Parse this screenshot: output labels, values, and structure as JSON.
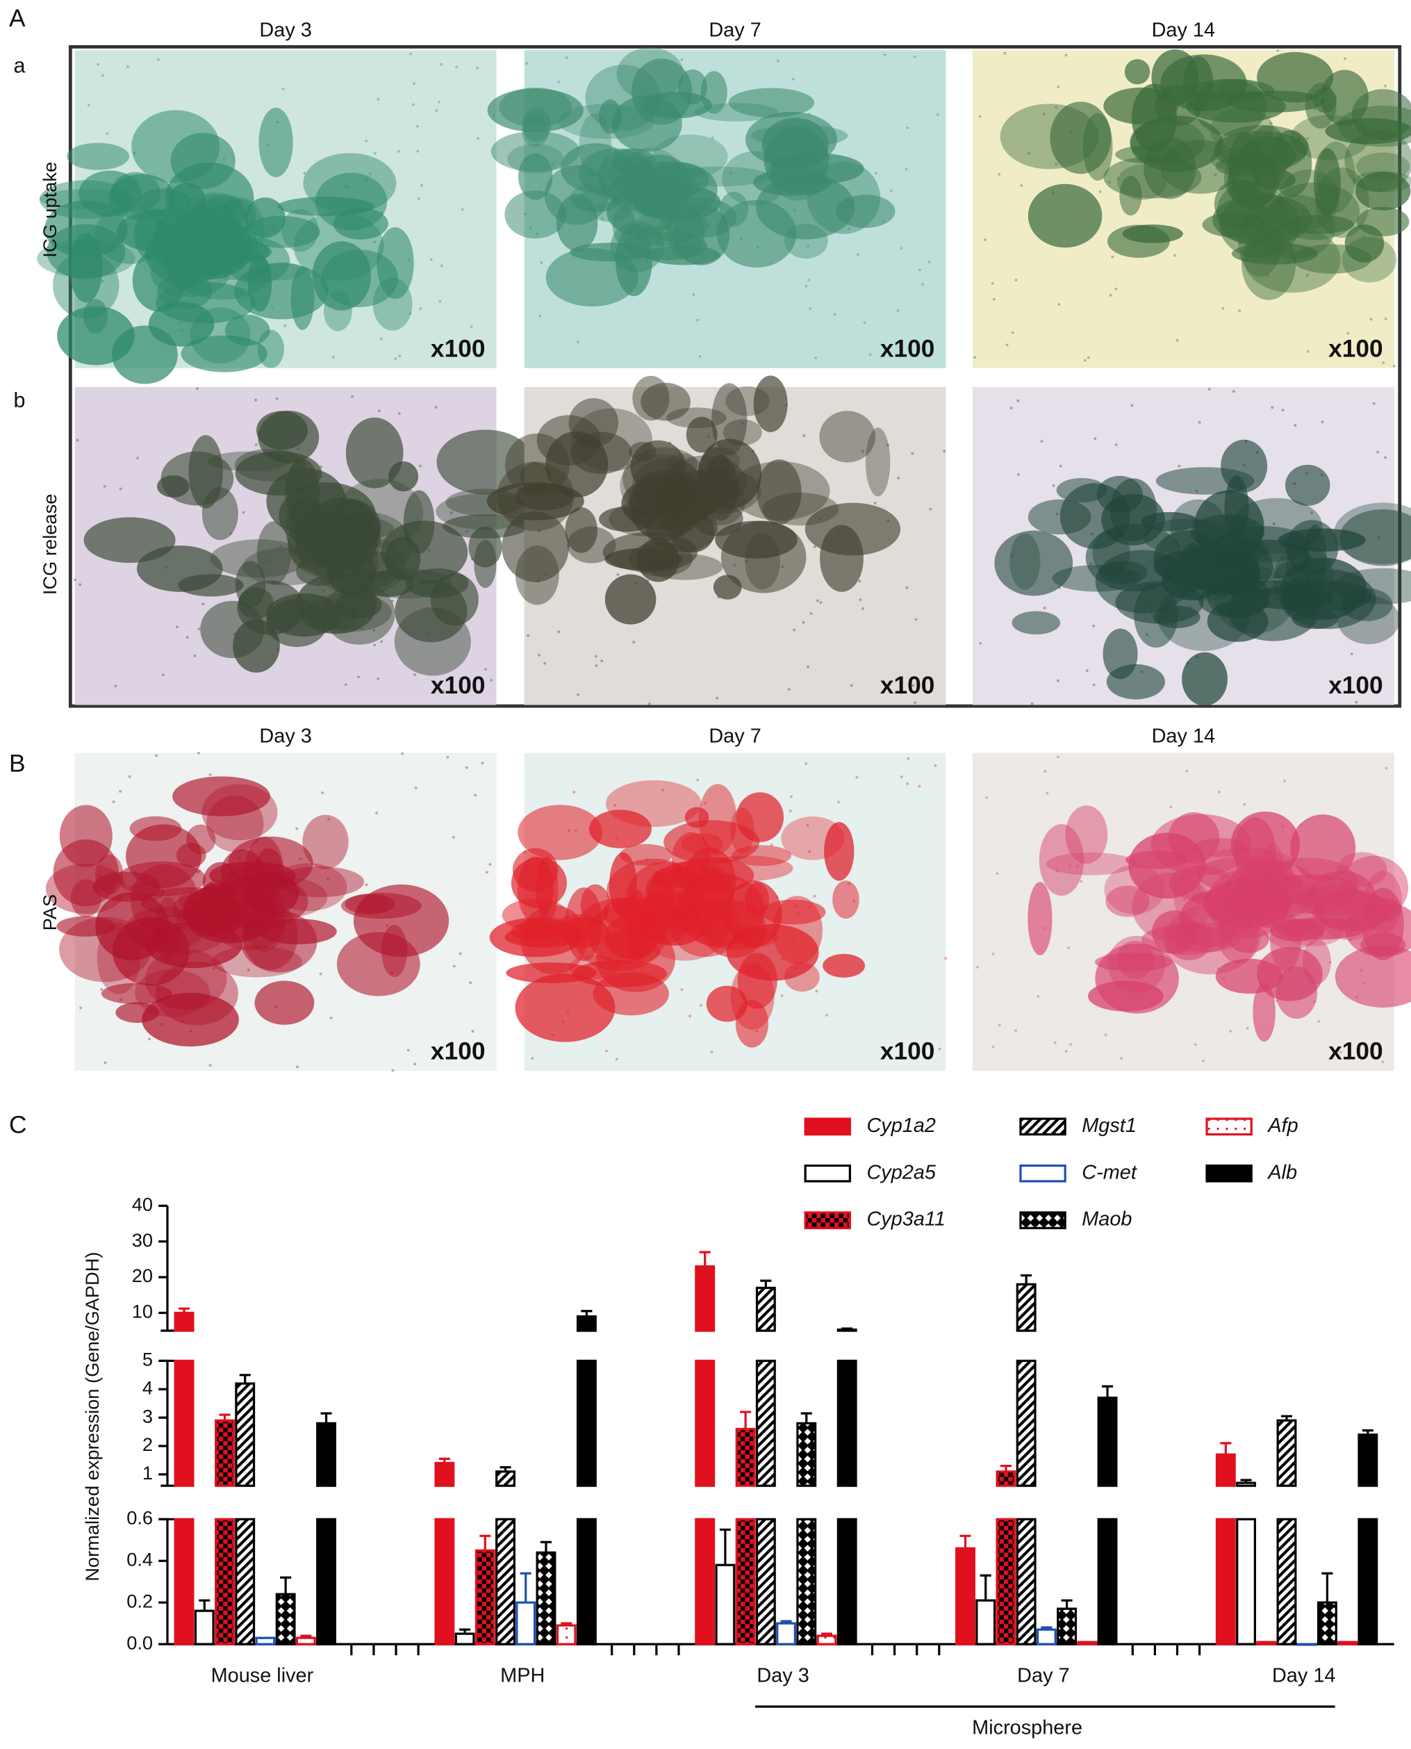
{
  "panel_a": {
    "label": "A",
    "columns": [
      "Day 3",
      "Day 7",
      "Day 14"
    ],
    "rows": [
      {
        "label": "a",
        "name": "ICG uptake",
        "magnifications": [
          "x100",
          "x100",
          "x100"
        ]
      },
      {
        "label": "b",
        "name": "ICG release",
        "magnifications": [
          "x100",
          "x100",
          "x100"
        ]
      }
    ]
  },
  "panel_b": {
    "label": "B",
    "columns": [
      "Day 3",
      "Day 7",
      "Day 14"
    ],
    "row_name": "PAS",
    "magnifications": [
      "x100",
      "x100",
      "x100"
    ]
  },
  "panel_c": {
    "label": "C"
  },
  "chart_data": {
    "type": "bar",
    "y_label": "Normalized expression (Gene/GAPDH)",
    "categories": [
      "Mouse liver",
      "MPH",
      "Day 3",
      "Day 7",
      "Day 14"
    ],
    "annotation": "Microsphere",
    "axis_segments": [
      {
        "ylim": [
          0,
          0.6
        ],
        "yticks": [
          {
            "value": 0,
            "label": "0.0"
          },
          0.2,
          0.4,
          0.6
        ]
      },
      {
        "ylim": [
          0.6,
          5
        ],
        "yticks": [
          1,
          2,
          3,
          4,
          5
        ]
      },
      {
        "ylim": [
          5,
          40
        ],
        "yticks": [
          10,
          20,
          30,
          40
        ]
      }
    ],
    "series": [
      {
        "name": "Cyp1a2",
        "color": "#e0101e",
        "pattern": "solid",
        "values": [
          10,
          1.4,
          23,
          0.46,
          1.7
        ],
        "errors": [
          1.2,
          0.15,
          4,
          0.06,
          0.4
        ]
      },
      {
        "name": "Cyp2a5",
        "color": "#000000",
        "pattern": "open",
        "values": [
          0.16,
          0.05,
          0.38,
          0.21,
          0.7
        ],
        "errors": [
          0.05,
          0.02,
          0.17,
          0.12,
          0.1
        ]
      },
      {
        "name": "Cyp3a11",
        "color": "#e0101e",
        "pattern": "checker",
        "values": [
          2.9,
          0.45,
          2.6,
          1.1,
          0.01
        ],
        "errors": [
          0.2,
          0.07,
          0.6,
          0.2,
          0
        ]
      },
      {
        "name": "Mgst1",
        "color": "#000000",
        "pattern": "hatch",
        "values": [
          4.2,
          1.1,
          17,
          18,
          2.9
        ],
        "errors": [
          0.3,
          0.15,
          2,
          2.5,
          0.15
        ]
      },
      {
        "name": "C-met",
        "color": "#1f4fb5",
        "pattern": "open",
        "values": [
          0.03,
          0.2,
          0.1,
          0.07,
          0
        ],
        "errors": [
          0,
          0.14,
          0.01,
          0.01,
          0
        ]
      },
      {
        "name": "Maob",
        "color": "#000000",
        "pattern": "diamond",
        "values": [
          0.24,
          0.44,
          2.8,
          0.17,
          0.2
        ],
        "errors": [
          0.08,
          0.05,
          0.35,
          0.04,
          0.14
        ]
      },
      {
        "name": "Afp",
        "color": "#e0101e",
        "pattern": "dotted",
        "values": [
          0.03,
          0.09,
          0.04,
          0.01,
          0.01
        ],
        "errors": [
          0.01,
          0.01,
          0.01,
          0,
          0
        ]
      },
      {
        "name": "Alb",
        "color": "#000000",
        "pattern": "solid",
        "values": [
          2.8,
          9,
          5.3,
          3.7,
          2.4
        ],
        "errors": [
          0.35,
          1.5,
          0.3,
          0.4,
          0.15
        ]
      }
    ]
  }
}
